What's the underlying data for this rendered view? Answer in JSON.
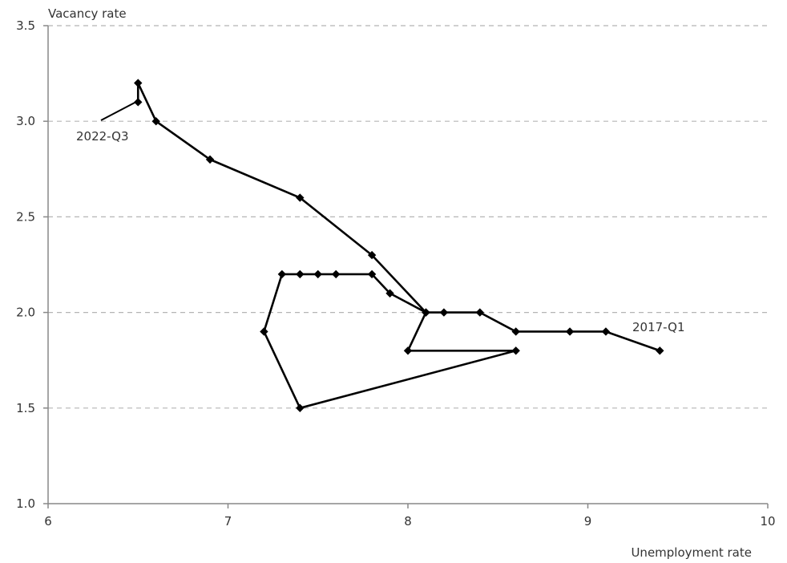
{
  "chart_data": {
    "type": "scatter",
    "title": "",
    "xlabel": "Unemployment rate",
    "ylabel": "Vacancy rate",
    "xlim": [
      6,
      10
    ],
    "ylim": [
      1.0,
      3.5
    ],
    "x_ticks": [
      "6",
      "7",
      "8",
      "9",
      "10"
    ],
    "y_ticks": [
      "1.0",
      "1.5",
      "2.0",
      "2.5",
      "3.0",
      "3.5"
    ],
    "grid": "horizontal-dashed",
    "series": [
      {
        "points": [
          {
            "x": 9.4,
            "y": 1.8
          },
          {
            "x": 9.1,
            "y": 1.9
          },
          {
            "x": 8.9,
            "y": 1.9
          },
          {
            "x": 8.6,
            "y": 1.9
          },
          {
            "x": 8.4,
            "y": 2.0
          },
          {
            "x": 8.2,
            "y": 2.0
          },
          {
            "x": 8.1,
            "y": 2.0
          },
          {
            "x": 8.0,
            "y": 1.8
          },
          {
            "x": 8.6,
            "y": 1.8
          },
          {
            "x": 7.4,
            "y": 1.5
          },
          {
            "x": 7.2,
            "y": 1.9
          },
          {
            "x": 7.3,
            "y": 2.2
          },
          {
            "x": 7.4,
            "y": 2.2
          },
          {
            "x": 7.5,
            "y": 2.2
          },
          {
            "x": 7.6,
            "y": 2.2
          },
          {
            "x": 7.8,
            "y": 2.2
          },
          {
            "x": 7.9,
            "y": 2.1
          },
          {
            "x": 8.1,
            "y": 2.0
          },
          {
            "x": 7.8,
            "y": 2.3
          },
          {
            "x": 7.4,
            "y": 2.6
          },
          {
            "x": 6.9,
            "y": 2.8
          },
          {
            "x": 6.6,
            "y": 3.0
          },
          {
            "x": 6.5,
            "y": 3.2
          },
          {
            "x": 6.5,
            "y": 3.1
          }
        ],
        "color": "#000000"
      }
    ],
    "annotations": [
      {
        "text": "2017-Q1",
        "x": 9.4,
        "y": 1.8
      },
      {
        "text": "2022-Q3",
        "x": 6.5,
        "y": 3.1
      }
    ]
  }
}
